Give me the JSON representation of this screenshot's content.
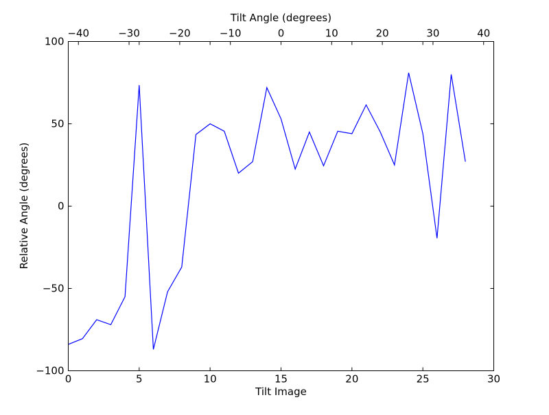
{
  "chart_data": {
    "type": "line",
    "xlabel": "Tilt Image",
    "ylabel": "Relative Angle (degrees)",
    "x2label": "Tilt Angle (degrees)",
    "xlim": [
      0,
      30
    ],
    "ylim": [
      -100,
      100
    ],
    "x2lim": [
      -42,
      42
    ],
    "xticks": [
      0,
      5,
      10,
      15,
      20,
      25,
      30
    ],
    "yticks": [
      -100,
      -50,
      0,
      50,
      100
    ],
    "x2ticks": [
      -40,
      -30,
      -20,
      -10,
      0,
      10,
      20,
      30,
      40
    ],
    "grid": false,
    "line_color": "#0000ff",
    "series": [
      {
        "x": [
          0,
          1,
          2,
          3,
          4,
          5,
          6,
          7,
          8,
          9,
          10,
          11,
          12,
          13,
          14,
          15,
          16,
          17,
          18,
          19,
          20,
          21,
          22,
          23,
          24,
          25,
          26,
          27,
          28
        ],
        "values": [
          -84,
          -80.5,
          -69,
          -72,
          -55,
          73.5,
          -87,
          -52,
          -37,
          43.5,
          50,
          45.5,
          20,
          27,
          72,
          53,
          22.5,
          45,
          24.5,
          45.5,
          44,
          61.5,
          45,
          25,
          81,
          44,
          -19.5,
          80,
          27
        ]
      }
    ]
  }
}
